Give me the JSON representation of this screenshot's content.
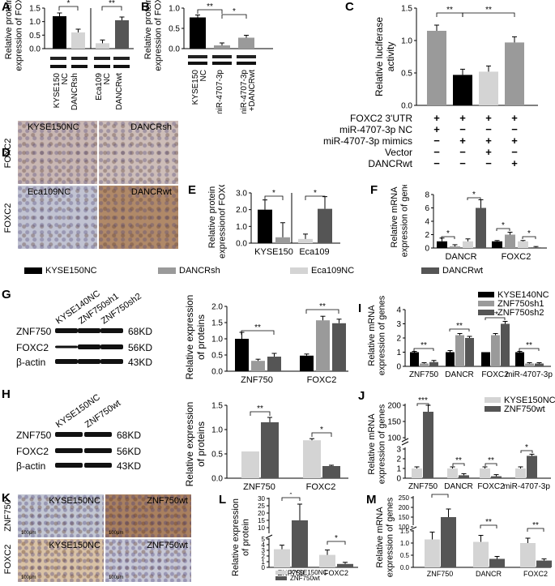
{
  "panels": {
    "A": {
      "letter": "A",
      "ylabel": "Relative protein\nexpression of FOXC2",
      "cats": [
        "KYSE150\nNC",
        "DANCRsh",
        "Eca109\nNC",
        "DANCRwt"
      ],
      "values": [
        1.2,
        0.6,
        0.2,
        1.05
      ],
      "ylim": [
        0,
        1.5
      ],
      "ticks": [
        "0.0",
        "0.5",
        "1.0",
        "1.5"
      ],
      "sig": [
        "*",
        "**"
      ]
    },
    "B": {
      "letter": "B",
      "ylabel": "Relative protein\nexpression of FOXC2",
      "cats": [
        "KYSE150\nNC",
        "miR-4707-3p",
        "miR-4707-3p\n+DANCRwt"
      ],
      "values": [
        0.77,
        0.08,
        0.27
      ],
      "ylim": [
        0,
        1.0
      ],
      "ticks": [
        "0.0",
        "0.5",
        "1.0"
      ],
      "sig": [
        "**",
        "*"
      ]
    },
    "C": {
      "letter": "C",
      "ylabel": "Relative luciferase\nactivity",
      "values": [
        1.15,
        0.47,
        0.52,
        0.97
      ],
      "ylim": [
        0,
        1.5
      ],
      "ticks": [
        "0.0",
        "0.5",
        "1.0",
        "1.5"
      ],
      "sig": [
        "**",
        "**"
      ],
      "rows": [
        {
          "label": "FOXC2 3'UTR",
          "marks": [
            "+",
            "+",
            "+",
            "+"
          ]
        },
        {
          "label": "miR-4707-3p NC",
          "marks": [
            "+",
            "−",
            "−",
            "−"
          ]
        },
        {
          "label": "miR-4707-3p mimics",
          "marks": [
            "−",
            "+",
            "+",
            "+"
          ]
        },
        {
          "label": "Vector",
          "marks": [
            "−",
            "−",
            "+",
            "−"
          ]
        },
        {
          "label": "DANCRwt",
          "marks": [
            "−",
            "−",
            "−",
            "+"
          ]
        }
      ]
    },
    "D": {
      "letter": "D",
      "row_labels": [
        "FOXC2",
        "FOXC2"
      ],
      "tiles": [
        "KYSE150NC",
        "DANCRsh",
        "Eca109NC",
        "DANCRwt"
      ]
    },
    "E": {
      "letter": "E",
      "ylabel": "Relative protein\nexpressionof FOXC2",
      "cats": [
        "KYSE150",
        "Eca109"
      ],
      "values": [
        2.0,
        0.35,
        0.25,
        2.05
      ],
      "ylim": [
        0,
        3.0
      ],
      "ticks": [
        "0.0",
        "1.0",
        "2.0",
        "3.0"
      ],
      "sig": [
        "*",
        "*"
      ]
    },
    "F": {
      "letter": "F",
      "ylabel": "Relative mRNA\nexpression of genes",
      "cats": [
        "DANCR",
        "FOXC2"
      ],
      "values": [
        1.0,
        0.25,
        1.0,
        6.0,
        1.0,
        2.0,
        1.0,
        0.1
      ],
      "ylim": [
        0,
        8
      ],
      "ticks": [
        "0",
        "2",
        "4",
        "6",
        "8"
      ],
      "sig": [
        "*",
        "*",
        "*",
        "*"
      ]
    },
    "legend1": [
      "KYSE150NC",
      "DANCRsh",
      "Eca109NC",
      "DANCRwt"
    ],
    "G": {
      "letter": "G",
      "lanes": [
        "KYSE140NC",
        "ZNF750sh1",
        "ZNF750sh2"
      ],
      "blots": [
        {
          "name": "ZNF750",
          "kd": "68KD"
        },
        {
          "name": "FOXC2",
          "kd": "56KD"
        },
        {
          "name": "β-actin",
          "kd": "43KD"
        }
      ],
      "ylabel": "Relative expression\nof proteins",
      "cats": [
        "ZNF750",
        "FOXC2"
      ],
      "values": [
        1.0,
        0.32,
        0.45,
        0.48,
        1.57,
        1.48
      ],
      "ylim": [
        0,
        2.0
      ],
      "ticks": [
        "0.0",
        "0.5",
        "1.0",
        "1.5",
        "2.0"
      ],
      "sig": [
        "**",
        "**"
      ]
    },
    "H": {
      "letter": "H",
      "lanes": [
        "KYSE150NC",
        "ZNF750wt"
      ],
      "blots": [
        {
          "name": "ZNF750",
          "kd": "68KD"
        },
        {
          "name": "FOXC2",
          "kd": "56KD"
        },
        {
          "name": "β-actin",
          "kd": "43KD"
        }
      ],
      "ylabel": "Relative expression\nof proteins",
      "cats": [
        "ZNF750",
        "FOXC2"
      ],
      "values": [
        0.55,
        1.15,
        0.78,
        0.25
      ],
      "ylim": [
        0,
        1.5
      ],
      "ticks": [
        "0.0",
        "0.5",
        "1.0",
        "1.5"
      ],
      "sig": [
        "**",
        "*"
      ]
    },
    "I": {
      "letter": "I",
      "ylabel": "Relative mRNA\nexpression of genes",
      "cats": [
        "ZNF750",
        "DANCR",
        "FOXC2",
        "miR-4707-3p"
      ],
      "values": [
        1.0,
        0.2,
        0.3,
        1.0,
        2.2,
        2.0,
        1.0,
        2.2,
        3.0,
        1.0,
        0.2,
        0.2
      ],
      "ylim": [
        0,
        4
      ],
      "ticks": [
        "0",
        "1",
        "2",
        "3",
        "4"
      ],
      "sig": [
        "**",
        "**",
        "**",
        "**"
      ],
      "legend": [
        "KYSE140NC",
        "ZNF750sh1",
        "ZNF750sh2"
      ]
    },
    "J": {
      "letter": "J",
      "ylabel": "Relative mRNA\nexpression of genes",
      "cats": [
        "ZNF750",
        "DANCR",
        "FOXC2",
        "miR-4707-3p"
      ],
      "values": [
        1.0,
        180,
        1.0,
        0.3,
        1.0,
        0.2,
        1.0,
        2.3
      ],
      "ticks": [
        "0",
        "1",
        "2",
        "3",
        "100",
        "150",
        "200"
      ],
      "sig": [
        "***",
        "**",
        "**",
        "*"
      ],
      "legend": [
        "KYSE150NC",
        "ZNF750wt"
      ]
    },
    "K": {
      "letter": "K",
      "row_labels": [
        "ZNF750",
        "FOXC2"
      ],
      "tiles": [
        "KYSE150NC",
        "ZNF750wt",
        "KYSE150NC",
        "ZNF750wt"
      ],
      "scale": [
        "100μm",
        "100μm",
        "100μm",
        "100μm"
      ]
    },
    "L": {
      "letter": "L",
      "ylabel": "Relative expression\nof protein",
      "cats": [
        "ZNF750",
        "FOXC2"
      ],
      "values": [
        3.2,
        15,
        2.2,
        0.6
      ],
      "ticks": [
        "0",
        "1",
        "2",
        "3",
        "4",
        "5",
        "10",
        "15",
        "20",
        "25",
        "30"
      ],
      "sig": [
        "*",
        "*"
      ],
      "legend": [
        "KYSE150NC",
        "ZNF750wt"
      ]
    },
    "M": {
      "letter": "M",
      "ylabel": "Relative mRNA\nexpression of genes",
      "cats": [
        "ZNF750",
        "DANCR",
        "FOXC2"
      ],
      "values": [
        1.15,
        150,
        1.05,
        0.35,
        1.0,
        0.28
      ],
      "ticks": [
        "0.0",
        "0.5",
        "1.0",
        "1.5",
        "100",
        "150",
        "200",
        "250"
      ],
      "sig": [
        "***",
        "**",
        "**"
      ]
    }
  },
  "colors": {
    "black": "#000000",
    "dark": "#555555",
    "mid": "#9a9a9a",
    "light": "#d4d4d4"
  }
}
